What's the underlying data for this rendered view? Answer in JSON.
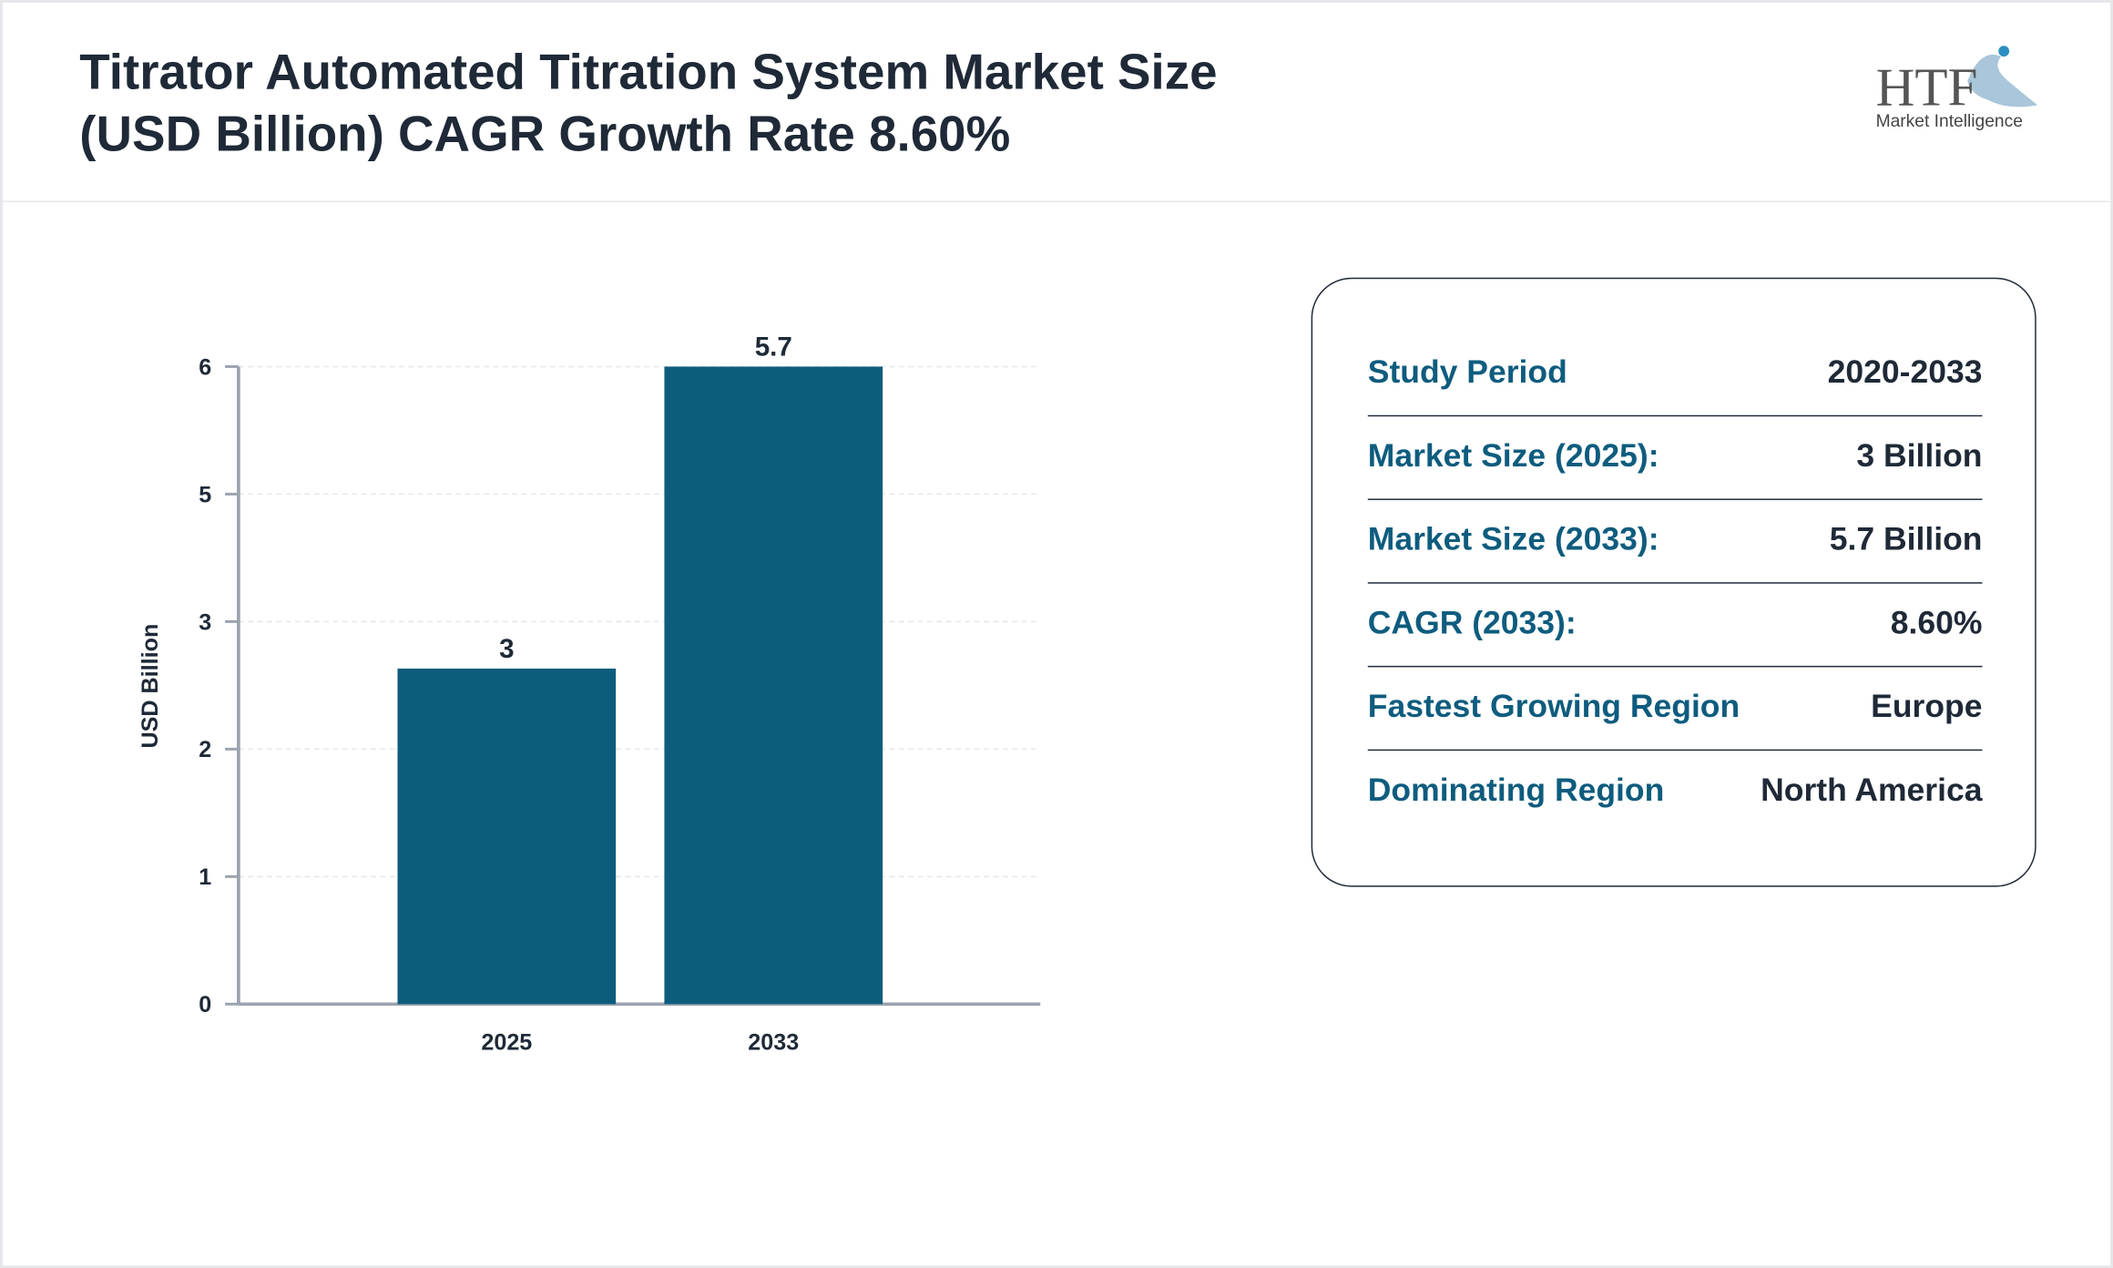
{
  "header": {
    "title": "Titrator Automated Titration System Market Size (USD Billion) CAGR Growth Rate 8.60%"
  },
  "logo": {
    "mark": "HTF",
    "tagline": "Market Intelligence"
  },
  "chart_data": {
    "type": "bar",
    "y_label": "USD Billion",
    "categories": [
      "2025",
      "2033"
    ],
    "values": [
      3,
      5.7
    ],
    "color": "#0d5c7c",
    "ylim": [
      0,
      5.7
    ],
    "yticks": [
      0,
      {
        "value": 1.14,
        "label": "1"
      },
      {
        "value": 2.28,
        "label": "2"
      },
      {
        "value": 3.42,
        "label": "3"
      },
      {
        "value": 4.56,
        "label": "5"
      },
      {
        "value": 5.7,
        "label": "6"
      }
    ],
    "grid": true
  },
  "summary": {
    "rows": [
      [
        "Study Period",
        "2020-2033"
      ],
      [
        "Market Size (2025):",
        "3 Billion"
      ],
      [
        "Market Size (2033):",
        "5.7 Billion"
      ],
      [
        "CAGR (2033):",
        "8.60%"
      ],
      [
        "Fastest Growing Region",
        "Europe"
      ],
      [
        "Dominating Region",
        "North America"
      ]
    ]
  }
}
